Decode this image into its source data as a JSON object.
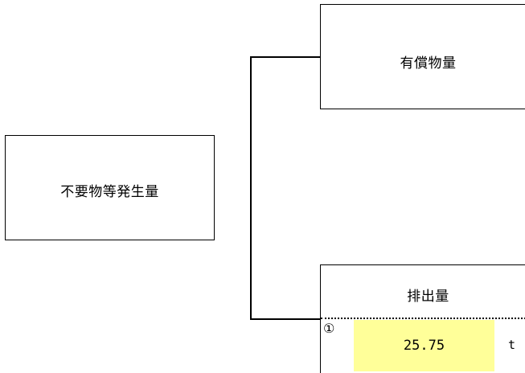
{
  "source_box": {
    "label": "不要物等発生量"
  },
  "valuable_box": {
    "label": "有償物量"
  },
  "discharge_box": {
    "label": "排出量",
    "marker": "①",
    "value": "25.75",
    "unit": "t"
  },
  "colors": {
    "value_highlight": "#ffff99",
    "line": "#000000"
  }
}
